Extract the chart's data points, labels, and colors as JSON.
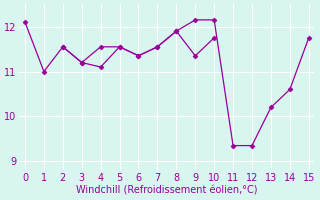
{
  "line1_x": [
    0,
    1,
    2,
    3,
    4,
    5,
    6,
    7,
    8,
    9,
    10,
    11,
    12,
    13,
    14,
    15
  ],
  "line1_y": [
    12.1,
    11.0,
    11.55,
    11.2,
    11.55,
    11.55,
    11.35,
    11.55,
    11.9,
    12.15,
    12.15,
    9.35,
    9.35,
    10.2,
    10.6,
    11.75
  ],
  "line2_x": [
    2,
    3,
    4,
    5,
    6,
    7,
    8,
    9,
    10
  ],
  "line2_y": [
    11.55,
    11.2,
    11.1,
    11.55,
    11.35,
    11.55,
    11.9,
    11.35,
    11.75
  ],
  "line_color": "#990099",
  "marker": "D",
  "marker_size": 2.5,
  "bg_color": "#d8f5f0",
  "xlabel": "Windchill (Refroidissement éolien,°C)",
  "xlabel_color": "#990099",
  "xlabel_fontsize": 7,
  "tick_color": "#990099",
  "tick_fontsize": 7,
  "xlim": [
    -0.3,
    15.3
  ],
  "ylim": [
    8.8,
    12.5
  ],
  "yticks": [
    9,
    10,
    11,
    12
  ],
  "xticks": [
    0,
    1,
    2,
    3,
    4,
    5,
    6,
    7,
    8,
    9,
    10,
    11,
    12,
    13,
    14,
    15
  ],
  "grid_color": "#ffffff",
  "grid_linewidth": 0.8
}
